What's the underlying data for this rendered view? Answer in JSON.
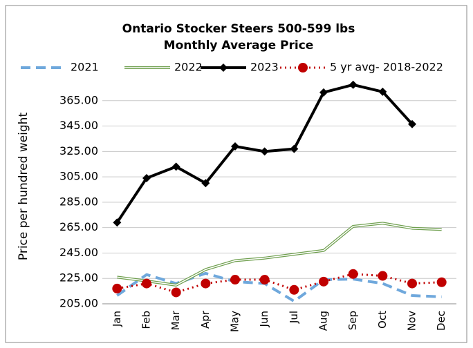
{
  "chart_data": {
    "type": "line",
    "title": "Ontario Stocker Steers 500-599 lbs",
    "subtitle": "Monthly Average Price",
    "y_label": "Price per hundred weight",
    "categories": [
      "Jan",
      "Feb",
      "Mar",
      "Apr",
      "May",
      "Jun",
      "Jul",
      "Aug",
      "Sep",
      "Oct",
      "Nov",
      "Dec"
    ],
    "series": [
      {
        "name": "2021",
        "color": "#6fa8dc",
        "style": "dashed",
        "values": [
          211.5,
          228,
          221,
          229,
          222.5,
          221,
          207,
          224,
          224.5,
          221,
          211.5,
          210.5
        ]
      },
      {
        "name": "2022",
        "color": "#70a050",
        "style": "double",
        "values": [
          226,
          223,
          219.7,
          232,
          239,
          241,
          244,
          247,
          266,
          268.5,
          264.5,
          263.5
        ]
      },
      {
        "name": "2023",
        "color": "#000000",
        "style": "solid-diamond",
        "values": [
          269,
          304,
          313,
          300,
          329,
          325,
          327,
          371.5,
          377.5,
          372,
          346.5,
          null
        ]
      },
      {
        "name": "5 yr avg- 2018-2022",
        "color": "#c00000",
        "style": "dotted-circle",
        "values": [
          217,
          221,
          214,
          221,
          224,
          224,
          216,
          222.5,
          228.5,
          227,
          221,
          222
        ]
      }
    ],
    "ylim": [
      205,
      385
    ],
    "yticks": [
      {
        "value": 205,
        "label": "205.00"
      },
      {
        "value": 225,
        "label": "225.00"
      },
      {
        "value": 245,
        "label": "245.00"
      },
      {
        "value": 265,
        "label": "265.00"
      },
      {
        "value": 285,
        "label": "285.00"
      },
      {
        "value": 305,
        "label": "305.00"
      },
      {
        "value": 325,
        "label": "325.00"
      },
      {
        "value": 345,
        "label": "345.00"
      },
      {
        "value": 365,
        "label": "365.00"
      }
    ],
    "grid": true,
    "legend": "top"
  }
}
